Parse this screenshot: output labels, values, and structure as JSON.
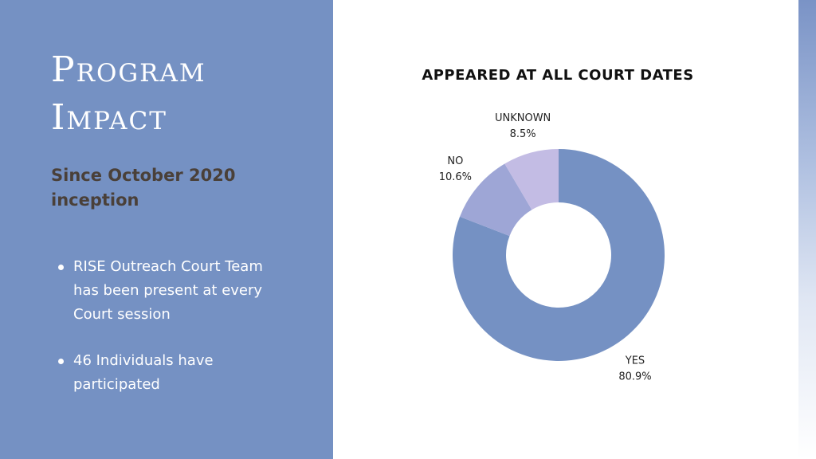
{
  "slide": {
    "title_line1": "Program",
    "title_line2": "Impact",
    "subtitle": "Since October 2020 inception",
    "bullets": [
      "RISE Outreach Court Team has been present at every Court session",
      "46 Individuals have participated"
    ],
    "colors": {
      "panel": "#7591c3",
      "subtitle": "#4a4039"
    }
  },
  "chart_data": {
    "type": "pie",
    "title": "APPEARED AT ALL COURT DATES",
    "donut": true,
    "categories": [
      "YES",
      "NO",
      "UNKNOWN"
    ],
    "values": [
      80.9,
      10.6,
      8.5
    ],
    "labels": [
      "80.9%",
      "10.6%",
      "8.5%"
    ],
    "colors": [
      "#7591c3",
      "#9ea6d6",
      "#c3bce4"
    ]
  }
}
